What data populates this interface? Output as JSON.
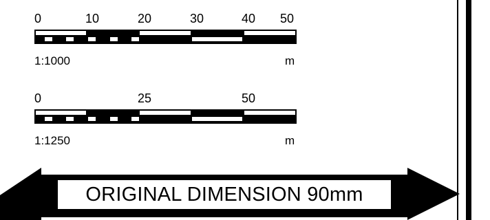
{
  "scale_bar_1": {
    "ticks": [
      "0",
      "10",
      "20",
      "30",
      "40",
      "50"
    ],
    "ratio": "1:1000",
    "unit": "m"
  },
  "scale_bar_2": {
    "ticks": [
      "0",
      "25",
      "50"
    ],
    "ratio": "1:1250",
    "unit": "m"
  },
  "dimension_label": "ORIGINAL DIMENSION 90mm"
}
